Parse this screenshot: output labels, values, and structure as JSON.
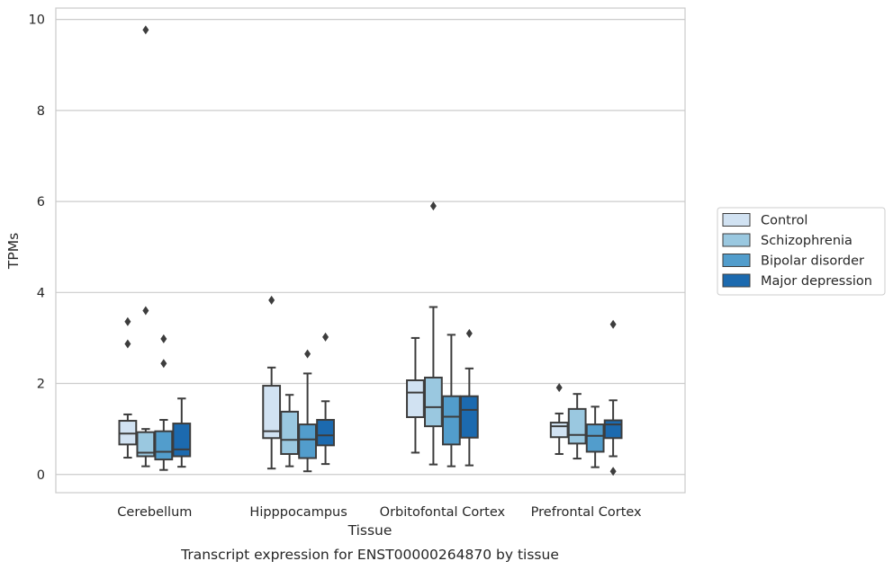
{
  "chart_data": {
    "type": "boxplot",
    "title": "",
    "caption": "Transcript expression for ENST00000264870 by tissue",
    "xlabel": "Tissue",
    "ylabel": "TPMs",
    "ylim": [
      -0.4,
      10.25
    ],
    "yticks": [
      0,
      2,
      4,
      6,
      8,
      10
    ],
    "grid": "horizontal",
    "legend_position": "right",
    "categories": [
      "Cerebellum",
      "Hipppocampus",
      "Orbitofontal Cortex",
      "Prefrontal Cortex"
    ],
    "series": [
      {
        "name": "Control",
        "color": "#d1e2f2",
        "boxes": [
          {
            "whislo": 0.37,
            "q1": 0.66,
            "med": 0.9,
            "q3": 1.18,
            "whishi": 1.32,
            "fliers": [
              2.87,
              3.36
            ]
          },
          {
            "whislo": 0.13,
            "q1": 0.8,
            "med": 0.95,
            "q3": 1.95,
            "whishi": 2.35,
            "fliers": [
              3.83
            ]
          },
          {
            "whislo": 0.48,
            "q1": 1.26,
            "med": 1.8,
            "q3": 2.07,
            "whishi": 3.0,
            "fliers": []
          },
          {
            "whislo": 0.45,
            "q1": 0.82,
            "med": 1.06,
            "q3": 1.14,
            "whishi": 1.34,
            "fliers": [
              1.91
            ]
          }
        ]
      },
      {
        "name": "Schizophrenia",
        "color": "#9ac8e0",
        "boxes": [
          {
            "whislo": 0.18,
            "q1": 0.4,
            "med": 0.48,
            "q3": 0.93,
            "whishi": 1.0,
            "fliers": [
              3.6,
              9.77
            ]
          },
          {
            "whislo": 0.18,
            "q1": 0.45,
            "med": 0.76,
            "q3": 1.38,
            "whishi": 1.75,
            "fliers": []
          },
          {
            "whislo": 0.22,
            "q1": 1.06,
            "med": 1.48,
            "q3": 2.13,
            "whishi": 3.68,
            "fliers": [
              5.9
            ]
          },
          {
            "whislo": 0.35,
            "q1": 0.68,
            "med": 0.87,
            "q3": 1.44,
            "whishi": 1.77,
            "fliers": []
          }
        ]
      },
      {
        "name": "Bipolar disorder",
        "color": "#529dcc",
        "boxes": [
          {
            "whislo": 0.1,
            "q1": 0.33,
            "med": 0.5,
            "q3": 0.95,
            "whishi": 1.2,
            "fliers": [
              2.44,
              2.98
            ]
          },
          {
            "whislo": 0.07,
            "q1": 0.36,
            "med": 0.77,
            "q3": 1.1,
            "whishi": 2.22,
            "fliers": [
              2.65
            ]
          },
          {
            "whislo": 0.18,
            "q1": 0.66,
            "med": 1.27,
            "q3": 1.72,
            "whishi": 3.07,
            "fliers": []
          },
          {
            "whislo": 0.16,
            "q1": 0.5,
            "med": 0.85,
            "q3": 1.1,
            "whishi": 1.49,
            "fliers": []
          }
        ]
      },
      {
        "name": "Major depression",
        "color": "#1c6aaf",
        "boxes": [
          {
            "whislo": 0.17,
            "q1": 0.4,
            "med": 0.55,
            "q3": 1.12,
            "whishi": 1.67,
            "fliers": []
          },
          {
            "whislo": 0.23,
            "q1": 0.64,
            "med": 0.86,
            "q3": 1.2,
            "whishi": 1.61,
            "fliers": [
              3.02
            ]
          },
          {
            "whislo": 0.2,
            "q1": 0.81,
            "med": 1.42,
            "q3": 1.72,
            "whishi": 2.33,
            "fliers": [
              3.1
            ]
          },
          {
            "whislo": 0.4,
            "q1": 0.8,
            "med": 1.1,
            "q3": 1.19,
            "whishi": 1.63,
            "fliers": [
              0.07,
              3.3
            ]
          }
        ]
      }
    ]
  }
}
